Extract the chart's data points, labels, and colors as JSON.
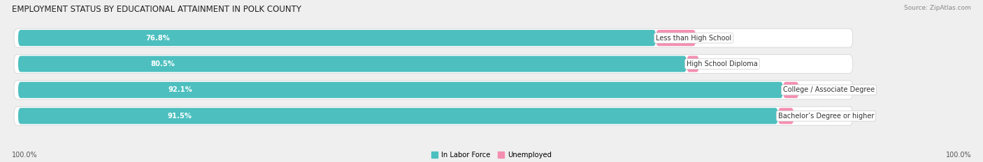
{
  "title": "EMPLOYMENT STATUS BY EDUCATIONAL ATTAINMENT IN POLK COUNTY",
  "source": "Source: ZipAtlas.com",
  "categories": [
    "Less than High School",
    "High School Diploma",
    "College / Associate Degree",
    "Bachelor’s Degree or higher"
  ],
  "in_labor_force": [
    76.8,
    80.5,
    92.1,
    91.5
  ],
  "unemployed": [
    4.8,
    1.5,
    1.9,
    1.9
  ],
  "teal_color": "#4dbfbf",
  "pink_color": "#f48fb1",
  "background_color": "#efefef",
  "row_bg_color": "#e0e0e0",
  "title_fontsize": 8.5,
  "label_fontsize": 7.2,
  "tick_fontsize": 7,
  "source_fontsize": 6.5,
  "legend_labels": [
    "In Labor Force",
    "Unemployed"
  ],
  "bottom_left_label": "100.0%",
  "bottom_right_label": "100.0%",
  "axis_max": 100.0
}
